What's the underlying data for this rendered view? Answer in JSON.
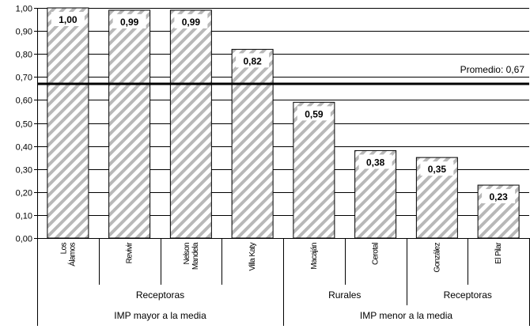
{
  "chart_data": {
    "type": "bar",
    "categories": [
      [
        "Los",
        "Álamos"
      ],
      [
        "Revivir"
      ],
      [
        "Nelson",
        "Mandela"
      ],
      [
        "Villa Katy"
      ],
      [
        "Macaján"
      ],
      [
        "Cerotal"
      ],
      [
        "González"
      ],
      [
        "El Pilar"
      ]
    ],
    "values": [
      1.0,
      0.99,
      0.99,
      0.82,
      0.59,
      0.38,
      0.35,
      0.23
    ],
    "value_labels": [
      "1,00",
      "0,99",
      "0,99",
      "0,82",
      "0,59",
      "0,38",
      "0,35",
      "0,23"
    ],
    "ylim": [
      0,
      1.0
    ],
    "yticks": [
      "0,00",
      "0,10",
      "0,20",
      "0,30",
      "0,40",
      "0,50",
      "0,60",
      "0,70",
      "0,80",
      "0,90",
      "1,00"
    ],
    "grid": true,
    "bar_fill": "diagonal-hatch",
    "reference_line": {
      "value": 0.67,
      "label": "Promedio: 0,67"
    },
    "group_levels": [
      [
        {
          "label": "Receptoras",
          "start": 0,
          "end": 3
        },
        {
          "label": "Rurales",
          "start": 4,
          "end": 5
        },
        {
          "label": "Receptoras",
          "start": 6,
          "end": 7
        }
      ],
      [
        {
          "label": "IMP mayor a la media",
          "start": 0,
          "end": 3
        },
        {
          "label": "IMP menor a la media",
          "start": 4,
          "end": 7
        }
      ]
    ]
  }
}
